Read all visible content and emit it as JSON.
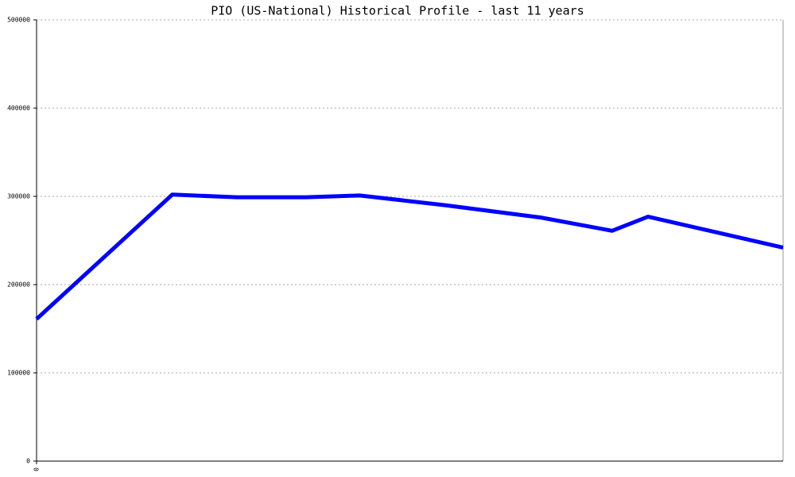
{
  "chart_data": {
    "type": "line",
    "title": "PIO (US-National) Historical Profile - last 11 years",
    "x": [
      0,
      2,
      2.95,
      3.97,
      4.76,
      6.02,
      7.43,
      8.48,
      9.01,
      11
    ],
    "series": [
      {
        "color": "#0000ff",
        "values": [
          161000,
          302000,
          299000,
          299000,
          301000,
          290000,
          276000,
          261000,
          277000,
          242000
        ]
      }
    ],
    "xlim": [
      0,
      11
    ],
    "xticks": [
      0
    ],
    "ylim": [
      0,
      500000
    ],
    "yticks": [
      0,
      100000,
      200000,
      300000,
      400000,
      500000
    ],
    "grid": true
  }
}
